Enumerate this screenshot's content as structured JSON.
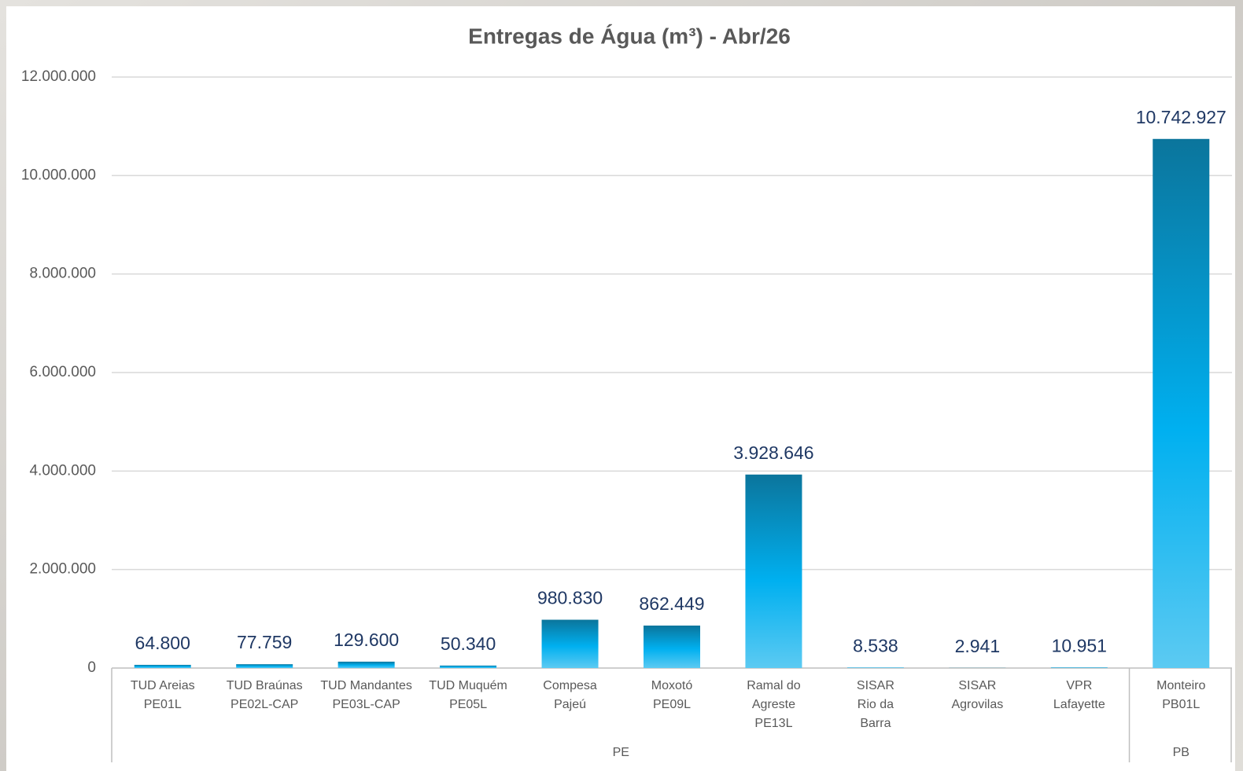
{
  "chart_data": {
    "type": "bar",
    "title": "Entregas de Água (m³) - Abr/26",
    "categories": [
      "TUD Areias\nPE01L",
      "TUD Braúnas\nPE02L-CAP",
      "TUD Mandantes\nPE03L-CAP",
      "TUD Muquém\nPE05L",
      "Compesa\nPajeú",
      "Moxotó\nPE09L",
      "Ramal do\nAgreste\nPE13L",
      "SISAR\nRio da\nBarra",
      "SISAR\nAgrovilas",
      "VPR\nLafayette",
      "Monteiro\nPB01L"
    ],
    "values": [
      64800,
      77759,
      129600,
      50340,
      980830,
      862449,
      3928646,
      8538,
      2941,
      10951,
      10742927
    ],
    "value_labels": [
      "64.800",
      "77.759",
      "129.600",
      "50.340",
      "980.830",
      "862.449",
      "3.928.646",
      "8.538",
      "2.941",
      "10.951",
      "10.742.927"
    ],
    "groups": [
      {
        "label": "PE",
        "size": 10
      },
      {
        "label": "PB",
        "size": 1
      }
    ],
    "color": "#00b0f0",
    "ylim": [
      0,
      12000000
    ],
    "yticks": [
      0,
      {
        "value": 2000000,
        "label": "2.000.000"
      },
      {
        "value": 4000000,
        "label": "4.000.000"
      },
      {
        "value": 6000000,
        "label": "6.000.000"
      },
      {
        "value": 8000000,
        "label": "8.000.000"
      },
      {
        "value": 10000000,
        "label": "10.000.000"
      },
      {
        "value": 12000000,
        "label": "12.000.000"
      }
    ],
    "grid": true
  }
}
